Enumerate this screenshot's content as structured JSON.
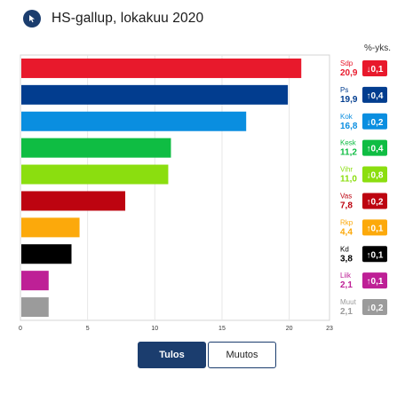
{
  "header": {
    "title": "HS-gallup, lokakuu 2020",
    "logo_icon": "cursor-logo-icon"
  },
  "change_header": "%-yks.",
  "toggle": {
    "result_label": "Tulos",
    "change_label": "Muutos",
    "active": "result"
  },
  "chart_data": {
    "type": "bar",
    "orientation": "horizontal",
    "categories": [
      "Sdp",
      "Ps",
      "Kok",
      "Kesk",
      "Vihr",
      "Vas",
      "Rkp",
      "Kd",
      "Liik",
      "Muut"
    ],
    "values": [
      20.9,
      19.9,
      16.8,
      11.2,
      11.0,
      7.8,
      4.4,
      3.8,
      2.1,
      2.1
    ],
    "value_labels": [
      "20,9",
      "19,9",
      "16,8",
      "11,2",
      "11,0",
      "7,8",
      "4,4",
      "3,8",
      "2,1",
      "2,1"
    ],
    "changes": [
      "0,1",
      "0,4",
      "0,2",
      "0,4",
      "0,8",
      "0,2",
      "0,1",
      "0,1",
      "0,1",
      "0,2"
    ],
    "change_directions": [
      "down",
      "up",
      "down",
      "up",
      "down",
      "up",
      "up",
      "up",
      "up",
      "down"
    ],
    "colors": [
      "#e8192c",
      "#023d8f",
      "#0a8ee0",
      "#0fbd43",
      "#8bde0f",
      "#bd0410",
      "#fca90b",
      "#000000",
      "#be2096",
      "#9b9b9b"
    ],
    "xlim": [
      0,
      23
    ],
    "xticks": [
      0,
      5,
      10,
      15,
      20,
      23
    ],
    "xtick_labels": [
      "0",
      "5",
      "10",
      "15",
      "20",
      "23"
    ],
    "grid": true,
    "title": "HS-gallup, lokakuu 2020"
  }
}
